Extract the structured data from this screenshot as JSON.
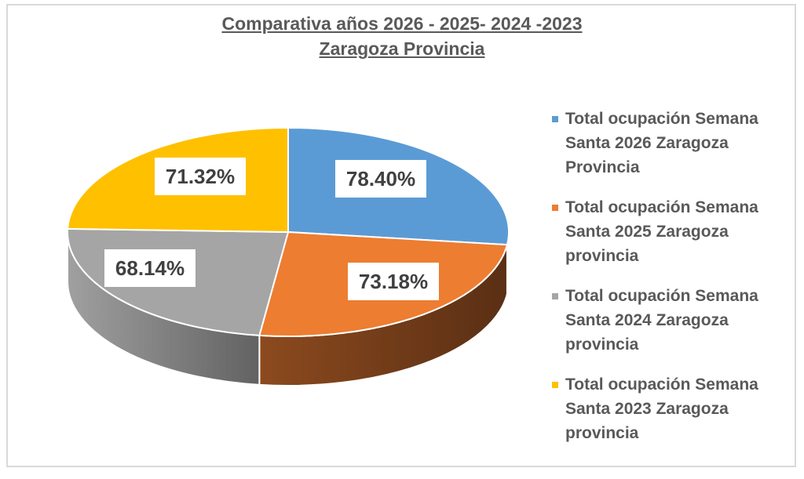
{
  "chart_data": {
    "type": "pie",
    "style": "3d-pie",
    "title": "Comparativa años 2026 - 2025- 2024 -2023",
    "subtitle": "Zaragoza Provincia",
    "categories": [
      "Total ocupación Semana Santa 2026 Zaragoza Provincia",
      "Total ocupación Semana Santa 2025 Zaragoza provincia",
      "Total ocupación Semana Santa 2024 Zaragoza provincia",
      "Total ocupación Semana Santa 2023 Zaragoza provincia"
    ],
    "values": [
      78.4,
      73.18,
      68.14,
      71.32
    ],
    "data_labels": [
      "78.40%",
      "73.18%",
      "68.14%",
      "71.32%"
    ],
    "colors": [
      "#5b9bd5",
      "#ed7d31",
      "#a5a5a5",
      "#ffc000"
    ],
    "legend_position": "right"
  },
  "legend": {
    "items": [
      {
        "lines": [
          "Total ocupación Semana",
          "Santa 2026 Zaragoza",
          "Provincia"
        ],
        "color": "#5b9bd5"
      },
      {
        "lines": [
          "Total ocupación Semana",
          "Santa 2025 Zaragoza",
          "provincia"
        ],
        "color": "#ed7d31"
      },
      {
        "lines": [
          "Total ocupación Semana",
          "Santa 2024 Zaragoza",
          "provincia"
        ],
        "color": "#a5a5a5"
      },
      {
        "lines": [
          "Total ocupación Semana",
          "Santa 2023 Zaragoza",
          "provincia"
        ],
        "color": "#ffc000"
      }
    ]
  }
}
